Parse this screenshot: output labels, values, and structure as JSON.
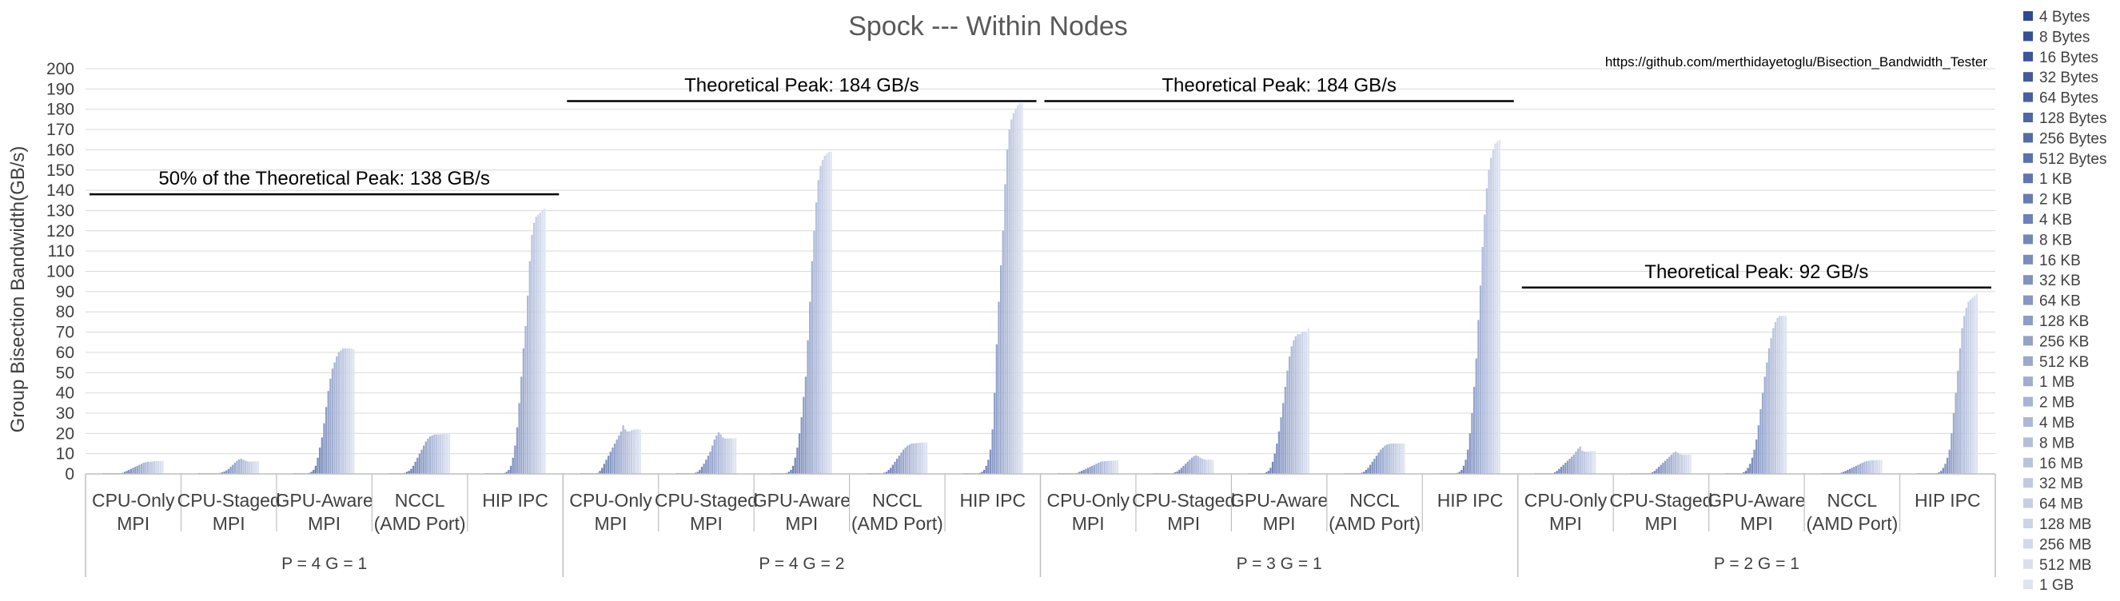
{
  "chart_data": {
    "type": "bar",
    "title": "Spock --- Within Nodes",
    "ylabel": "Group Bisection Bandwidth(GB/s)",
    "xlabel": "",
    "ylim": [
      0,
      200
    ],
    "ytick_step": 10,
    "grid": true,
    "legend_position": "right",
    "source_note": "https://github.com/merthidayetoglu/Bisection_Bandwidth_Tester",
    "series_names": [
      "4 Bytes",
      "8 Bytes",
      "16 Bytes",
      "32 Bytes",
      "64 Bytes",
      "128 Bytes",
      "256 Bytes",
      "512 Bytes",
      "1 KB",
      "2 KB",
      "4 KB",
      "8 KB",
      "16 KB",
      "32 KB",
      "64 KB",
      "128 KB",
      "256 KB",
      "512 KB",
      "1 MB",
      "2 MB",
      "4 MB",
      "8 MB",
      "16 MB",
      "32 MB",
      "64 MB",
      "128 MB",
      "256 MB",
      "512 MB",
      "1 GB"
    ],
    "color_start": "#2e4a94",
    "color_end": "#dfe4f2",
    "groups": [
      {
        "label": "P = 4  G = 1",
        "peak_label": "50% of the Theoretical Peak: 138 GB/s",
        "peak_value": 138,
        "categories": [
          {
            "label": [
              "CPU-Only",
              "MPI"
            ],
            "values": [
              0,
              0,
              0,
              0,
              0,
              0,
              0,
              0.1,
              0.2,
              0.5,
              1,
              1.5,
              2,
              2.5,
              3,
              3.5,
              4,
              4.5,
              5,
              5.5,
              5.8,
              6,
              6,
              6.1,
              6.2,
              6.3,
              6.3,
              6.4,
              6.4
            ]
          },
          {
            "label": [
              "CPU-Staged",
              "MPI"
            ],
            "values": [
              0,
              0,
              0,
              0,
              0,
              0,
              0,
              0.1,
              0.2,
              0.3,
              0.5,
              0.8,
              1.2,
              1.8,
              2.5,
              3.5,
              4.5,
              5.5,
              6.5,
              7.2,
              7.5,
              7,
              6.5,
              6.2,
              6.1,
              6.1,
              6.2,
              6.2,
              6.3
            ]
          },
          {
            "label": [
              "GPU-Aware",
              "MPI"
            ],
            "values": [
              0,
              0,
              0,
              0,
              0,
              0,
              0,
              0.5,
              1,
              2,
              4,
              8,
              13,
              18,
              25,
              33,
              41,
              47,
              52,
              55,
              58,
              60,
              61,
              62,
              62,
              62,
              62,
              62,
              61.5
            ]
          },
          {
            "label": [
              "NCCL",
              "(AMD Port)"
            ],
            "values": [
              0,
              0,
              0,
              0,
              0,
              0,
              0.2,
              0.5,
              1,
              1.5,
              2.5,
              4,
              6,
              8,
              10,
              12,
              14,
              16,
              17.5,
              18.5,
              19,
              19.5,
              19.5,
              19.5,
              19.6,
              19.6,
              19.7,
              19.7,
              19.7
            ]
          },
          {
            "label": [
              "HIP IPC"
            ],
            "values": [
              0,
              0,
              0,
              0,
              0,
              0,
              0,
              0,
              0.2,
              0.5,
              1,
              2,
              4,
              8,
              14,
              23,
              35,
              48,
              62,
              73,
              88,
              105,
              118,
              124,
              127,
              128,
              129,
              130,
              131
            ]
          }
        ]
      },
      {
        "label": "P = 4  G = 2",
        "peak_label": "Theoretical Peak: 184 GB/s",
        "peak_value": 184,
        "categories": [
          {
            "label": [
              "CPU-Only",
              "MPI"
            ],
            "values": [
              0,
              0,
              0,
              0,
              0,
              0,
              0,
              0.2,
              0.5,
              1.5,
              3,
              5,
              7,
              9,
              11,
              13,
              15,
              17,
              19,
              21,
              24,
              22,
              21,
              21,
              21.5,
              21.8,
              22,
              22,
              22
            ]
          },
          {
            "label": [
              "CPU-Staged",
              "MPI"
            ],
            "values": [
              0,
              0,
              0,
              0,
              0,
              0,
              0,
              0.1,
              0.3,
              0.6,
              1,
              2,
              3.5,
              5,
              7,
              9,
              11,
              14,
              17,
              19,
              20.5,
              19.5,
              18,
              17.5,
              17.5,
              17.5,
              17.6,
              17.6,
              17.7
            ]
          },
          {
            "label": [
              "GPU-Aware",
              "MPI"
            ],
            "values": [
              0,
              0,
              0,
              0,
              0,
              0,
              0,
              0.5,
              1,
              2,
              4,
              8,
              13,
              20,
              28,
              38,
              48,
              66,
              85,
              105,
              120,
              134,
              145,
              152,
              155,
              157,
              158,
              159,
              159
            ]
          },
          {
            "label": [
              "NCCL",
              "(AMD Port)"
            ],
            "values": [
              0,
              0,
              0,
              0,
              0,
              0,
              0.1,
              0.3,
              0.6,
              1,
              2,
              3,
              4.5,
              6,
              7.5,
              9,
              10.5,
              12,
              13,
              14,
              14.5,
              15,
              15,
              15.2,
              15.3,
              15.4,
              15.5,
              15.5,
              15.5
            ]
          },
          {
            "label": [
              "HIP IPC"
            ],
            "values": [
              0,
              0,
              0,
              0,
              0,
              0,
              0,
              0.2,
              0.5,
              1,
              2,
              4,
              7,
              12,
              22,
              40,
              64,
              85,
              103,
              120,
              143,
              160,
              170,
              175,
              178,
              180,
              182,
              183,
              183
            ]
          }
        ]
      },
      {
        "label": "P = 3  G = 1",
        "peak_label": "Theoretical Peak: 184 GB/s",
        "peak_value": 184,
        "categories": [
          {
            "label": [
              "CPU-Only",
              "MPI"
            ],
            "values": [
              0,
              0,
              0,
              0,
              0,
              0,
              0,
              0.1,
              0.2,
              0.5,
              1,
              1.5,
              2,
              2.5,
              3,
              3.5,
              4,
              4.5,
              5,
              5.5,
              6,
              6.2,
              6.3,
              6.4,
              6.5,
              6.5,
              6.6,
              6.6,
              6.6
            ]
          },
          {
            "label": [
              "CPU-Staged",
              "MPI"
            ],
            "values": [
              0,
              0,
              0,
              0,
              0,
              0,
              0,
              0.1,
              0.2,
              0.4,
              0.8,
              1.2,
              2,
              3,
              4,
              5,
              6,
              7,
              8,
              8.8,
              9.2,
              8.8,
              8,
              7.5,
              7.2,
              7,
              7,
              7,
              6.8
            ]
          },
          {
            "label": [
              "GPU-Aware",
              "MPI"
            ],
            "values": [
              0,
              0,
              0,
              0,
              0,
              0,
              0,
              0.3,
              0.8,
              1.5,
              3,
              6,
              10,
              15,
              21,
              28,
              35,
              43,
              51,
              58,
              63,
              66,
              68,
              69,
              69,
              70,
              70,
              70,
              72
            ]
          },
          {
            "label": [
              "NCCL",
              "(AMD Port)"
            ],
            "values": [
              0,
              0,
              0,
              0,
              0,
              0,
              0.1,
              0.3,
              0.6,
              1,
              2,
              3,
              4.5,
              6,
              7.5,
              9,
              10.5,
              12,
              13,
              14,
              14.5,
              14.8,
              15,
              15,
              15,
              15,
              15,
              15,
              15
            ]
          },
          {
            "label": [
              "HIP IPC"
            ],
            "values": [
              0,
              0,
              0,
              0,
              0,
              0,
              0,
              0.2,
              0.5,
              1,
              2,
              4,
              7,
              12,
              20,
              30,
              43,
              57,
              76,
              93,
              112,
              128,
              141,
              150,
              156,
              160,
              163,
              164,
              165
            ]
          }
        ]
      },
      {
        "label": "P = 2  G = 1",
        "peak_label": "Theoretical Peak: 92 GB/s",
        "peak_value": 92,
        "categories": [
          {
            "label": [
              "CPU-Only",
              "MPI"
            ],
            "values": [
              0,
              0,
              0,
              0,
              0,
              0,
              0,
              0.1,
              0.3,
              0.8,
              1.5,
              2.5,
              3.5,
              4.5,
              5.5,
              6.5,
              7.5,
              8.5,
              9.5,
              11,
              12.5,
              13.5,
              11.5,
              11,
              11,
              11,
              11.2,
              11.2,
              11.3
            ]
          },
          {
            "label": [
              "CPU-Staged",
              "MPI"
            ],
            "values": [
              0,
              0,
              0,
              0,
              0,
              0,
              0,
              0.1,
              0.2,
              0.4,
              0.8,
              1.5,
              2.5,
              3.5,
              4.5,
              5.5,
              6.5,
              7.5,
              8.5,
              9.5,
              10.5,
              11,
              10.5,
              9.8,
              9.5,
              9.5,
              9.5,
              9.5,
              9.5
            ]
          },
          {
            "label": [
              "GPU-Aware",
              "MPI"
            ],
            "values": [
              0,
              0,
              0,
              0,
              0,
              0,
              0,
              0.3,
              0.8,
              1.5,
              3,
              5,
              8,
              12,
              17,
              24,
              32,
              40,
              48,
              55,
              62,
              67,
              72,
              75,
              77,
              78,
              78,
              78,
              78
            ]
          },
          {
            "label": [
              "NCCL",
              "(AMD Port)"
            ],
            "values": [
              0,
              0,
              0,
              0,
              0,
              0,
              0,
              0.1,
              0.3,
              0.6,
              1,
              1.5,
              2,
              2.5,
              3,
              3.5,
              4,
              4.5,
              5,
              5.5,
              6,
              6.3,
              6.5,
              6.7,
              6.8,
              6.8,
              6.9,
              6.9,
              6.9
            ]
          },
          {
            "label": [
              "HIP IPC"
            ],
            "values": [
              0,
              0,
              0,
              0,
              0,
              0,
              0,
              0.1,
              0.2,
              0.4,
              0.8,
              1.5,
              3,
              5,
              8,
              12,
              20,
              30,
              40,
              51,
              62,
              72,
              78,
              82,
              85,
              86,
              87,
              88,
              89
            ]
          }
        ]
      }
    ]
  }
}
